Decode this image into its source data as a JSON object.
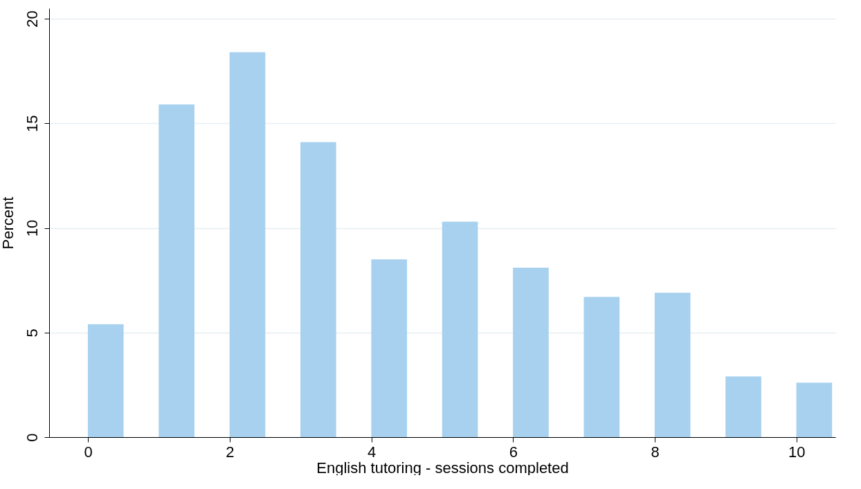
{
  "chart_data": {
    "type": "bar",
    "xlabel": "English tutoring - sessions completed",
    "ylabel": "Percent",
    "x": [
      0.25,
      1.25,
      2.25,
      3.25,
      4.25,
      5.25,
      6.25,
      7.25,
      8.25,
      9.25,
      10.25
    ],
    "values": [
      5.4,
      15.9,
      18.4,
      14.1,
      8.5,
      10.3,
      8.1,
      6.7,
      6.9,
      2.9,
      2.6
    ],
    "color": "#a7d1ef",
    "xlim": [
      -0.5,
      10.5
    ],
    "ylim": [
      0,
      20.5
    ],
    "xticks": [
      0,
      2,
      4,
      6,
      8,
      10
    ],
    "yticks": [
      0,
      5,
      10,
      15,
      20
    ],
    "grid": "y"
  }
}
